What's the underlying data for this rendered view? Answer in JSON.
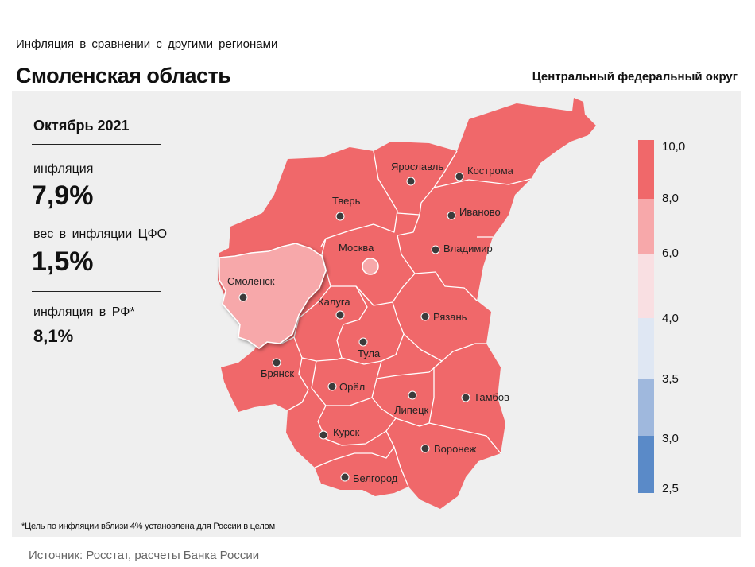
{
  "header": {
    "subtitle": "Инфляция  в сравнении  с другими  регионами",
    "title": "Смоленская область",
    "district": "Центральный федеральный округ"
  },
  "info": {
    "period": "Октябрь 2021",
    "inflation_label": "инфляция",
    "inflation_value": "7,9%",
    "weight_label": "вес в инфляции  ЦФО",
    "weight_value": "1,5%",
    "rf_label": "инфляция  в РФ*",
    "rf_value": "8,1%"
  },
  "legend": {
    "ticks": [
      "10,0",
      "8,0",
      "6,0",
      "4,0",
      "3,5",
      "3,0",
      "2,5"
    ],
    "colors": [
      "#f0686a",
      "#f7a8aa",
      "#f9dfe2",
      "#dfe7f3",
      "#9fb8dd",
      "#5a8ac8"
    ]
  },
  "regions": {
    "kostroma": "Кострома",
    "yaroslavl": "Ярославль",
    "ivanovo": "Иваново",
    "tver": "Тверь",
    "moskva": "Москва",
    "vladimir": "Владимир",
    "smolensk": "Смоленск",
    "kaluga": "Калуга",
    "ryazan": "Рязань",
    "tula": "Тула",
    "bryansk": "Брянск",
    "orel": "Орёл",
    "lipetsk": "Липецк",
    "tambov": "Тамбов",
    "kursk": "Курск",
    "voronezh": "Воронеж",
    "belgorod": "Белгород"
  },
  "colors": {
    "high": "#f0686a",
    "selected": "#f7a8aa"
  },
  "footnote": "*Цель по инфляции вблизи 4% установлена для России в целом",
  "source": "Источник: Росстат, расчеты Банка России"
}
